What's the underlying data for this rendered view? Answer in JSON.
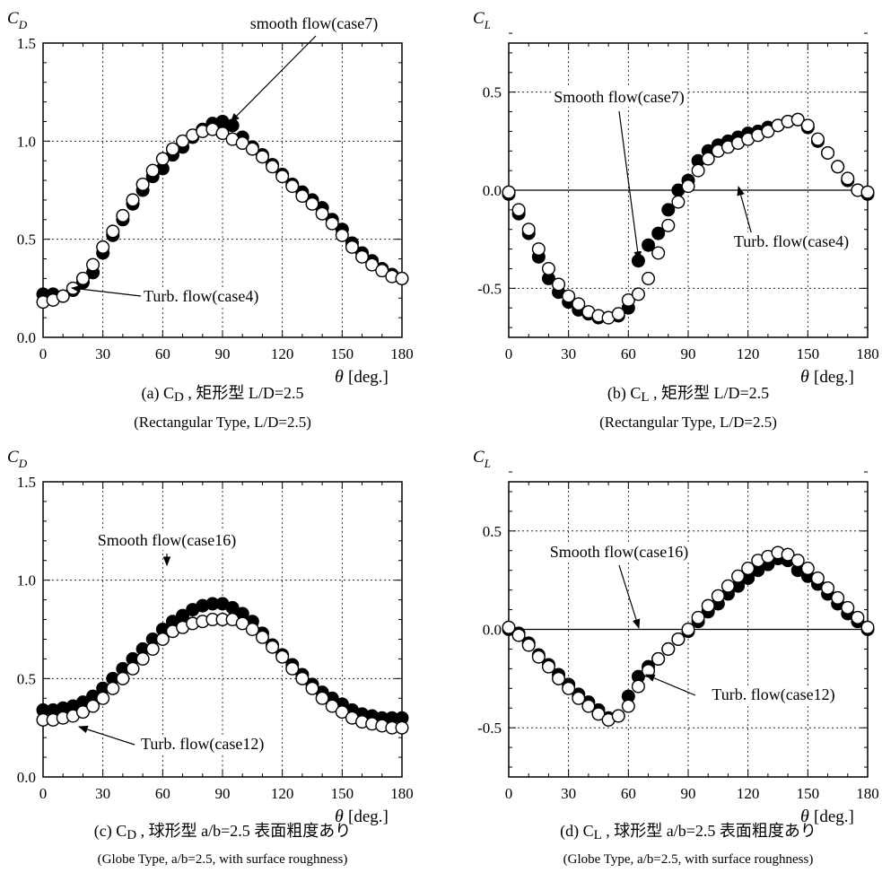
{
  "chart_data": [
    {
      "id": "a",
      "type": "scatter",
      "ylabel": "C",
      "ylabel_sub": "D",
      "xunit": "[deg.]",
      "xlabel_symbol": "θ",
      "xlim": [
        0,
        180
      ],
      "ylim": [
        0.0,
        1.5
      ],
      "xticks": [
        "0",
        "30",
        "60",
        "90",
        "120",
        "150",
        "180"
      ],
      "yticks": [
        "0.0",
        "0.5",
        "1.0",
        "1.5"
      ],
      "zero_line": false,
      "grid": true,
      "caption_line1_prefix": "(a) C",
      "caption_line1_sub": "D",
      "caption_line1_rest": " , 矩形型 L/D=2.5",
      "caption_line2": "(Rectangular Type, L/D=2.5)",
      "annotations": [
        {
          "text": "smooth flow(case7)"
        },
        {
          "text": "Turb. flow(case4)"
        }
      ],
      "series": [
        {
          "marker": "filled",
          "x": [
            0,
            5,
            10,
            15,
            20,
            25,
            30,
            35,
            40,
            45,
            50,
            55,
            60,
            65,
            70,
            75,
            80,
            85,
            90,
            95,
            100,
            105,
            110,
            115,
            120,
            125,
            130,
            135,
            140,
            145,
            150,
            155,
            160,
            165,
            170,
            175,
            180
          ],
          "y": [
            0.22,
            0.22,
            0.21,
            0.24,
            0.28,
            0.33,
            0.43,
            0.52,
            0.6,
            0.68,
            0.75,
            0.82,
            0.86,
            0.93,
            0.97,
            1.02,
            1.06,
            1.09,
            1.1,
            1.08,
            1.02,
            0.97,
            0.93,
            0.88,
            0.83,
            0.78,
            0.74,
            0.7,
            0.66,
            0.6,
            0.55,
            0.48,
            0.43,
            0.39,
            0.35,
            0.32,
            0.3
          ]
        },
        {
          "marker": "open",
          "x": [
            0,
            5,
            10,
            15,
            20,
            25,
            30,
            35,
            40,
            45,
            50,
            55,
            60,
            65,
            70,
            75,
            80,
            85,
            90,
            95,
            100,
            105,
            110,
            115,
            120,
            125,
            130,
            135,
            140,
            145,
            150,
            155,
            160,
            165,
            170,
            175,
            180
          ],
          "y": [
            0.18,
            0.19,
            0.21,
            0.25,
            0.3,
            0.37,
            0.46,
            0.54,
            0.62,
            0.7,
            0.78,
            0.85,
            0.91,
            0.96,
            1.0,
            1.03,
            1.05,
            1.06,
            1.04,
            1.01,
            0.99,
            0.96,
            0.92,
            0.87,
            0.82,
            0.77,
            0.72,
            0.68,
            0.63,
            0.58,
            0.52,
            0.46,
            0.41,
            0.37,
            0.34,
            0.31,
            0.3
          ]
        }
      ]
    },
    {
      "id": "b",
      "type": "scatter",
      "ylabel": "C",
      "ylabel_sub": "L",
      "xunit": "[deg.]",
      "xlabel_symbol": "θ",
      "xlim": [
        0,
        180
      ],
      "ylim": [
        -0.75,
        0.75
      ],
      "xticks": [
        "0",
        "30",
        "60",
        "90",
        "120",
        "150",
        "180"
      ],
      "yticks": [
        "-0.5",
        "0.0",
        "0.5"
      ],
      "ytick_values": [
        -0.5,
        0.0,
        0.5
      ],
      "zero_line": true,
      "grid": true,
      "caption_line1_prefix": "(b) C",
      "caption_line1_sub": "L",
      "caption_line1_rest": " , 矩形型 L/D=2.5",
      "caption_line2": "(Rectangular Type, L/D=2.5)",
      "annotations": [
        {
          "text": "Smooth flow(case7)"
        },
        {
          "text": "Turb. flow(case4)"
        }
      ],
      "series": [
        {
          "marker": "filled",
          "x": [
            0,
            5,
            10,
            15,
            20,
            25,
            30,
            35,
            40,
            45,
            50,
            55,
            60,
            65,
            70,
            75,
            80,
            85,
            90,
            95,
            100,
            105,
            110,
            115,
            120,
            125,
            130,
            135,
            140,
            145,
            150,
            155,
            160,
            165,
            170,
            175,
            180
          ],
          "y": [
            -0.02,
            -0.12,
            -0.22,
            -0.34,
            -0.45,
            -0.52,
            -0.57,
            -0.61,
            -0.63,
            -0.65,
            -0.65,
            -0.64,
            -0.6,
            -0.36,
            -0.28,
            -0.22,
            -0.1,
            0.0,
            0.05,
            0.15,
            0.2,
            0.23,
            0.25,
            0.27,
            0.29,
            0.3,
            0.32,
            0.33,
            0.35,
            0.36,
            0.32,
            0.25,
            0.19,
            0.12,
            0.05,
            0.0,
            -0.02
          ]
        },
        {
          "marker": "open",
          "x": [
            0,
            5,
            10,
            15,
            20,
            25,
            30,
            35,
            40,
            45,
            50,
            55,
            60,
            65,
            70,
            75,
            80,
            85,
            90,
            95,
            100,
            105,
            110,
            115,
            120,
            125,
            130,
            135,
            140,
            145,
            150,
            155,
            160,
            165,
            170,
            175,
            180
          ],
          "y": [
            -0.01,
            -0.1,
            -0.2,
            -0.3,
            -0.4,
            -0.48,
            -0.54,
            -0.58,
            -0.62,
            -0.64,
            -0.65,
            -0.63,
            -0.56,
            -0.53,
            -0.45,
            -0.32,
            -0.18,
            -0.06,
            0.02,
            0.1,
            0.16,
            0.2,
            0.22,
            0.24,
            0.26,
            0.28,
            0.3,
            0.33,
            0.35,
            0.36,
            0.33,
            0.26,
            0.19,
            0.12,
            0.06,
            0.0,
            -0.01
          ]
        }
      ]
    },
    {
      "id": "c",
      "type": "scatter",
      "ylabel": "C",
      "ylabel_sub": "D",
      "xunit": "[deg.]",
      "xlabel_symbol": "θ",
      "xlim": [
        0,
        180
      ],
      "ylim": [
        0.0,
        1.5
      ],
      "xticks": [
        "0",
        "30",
        "60",
        "90",
        "120",
        "150",
        "180"
      ],
      "yticks": [
        "0.0",
        "0.5",
        "1.0",
        "1.5"
      ],
      "zero_line": false,
      "grid": true,
      "caption_line1_prefix": "(c) C",
      "caption_line1_sub": "D",
      "caption_line1_rest": " , 球形型 a/b=2.5 表面粗度あり",
      "caption_line2": "(Globe Type, a/b=2.5, with surface roughness)",
      "annotations": [
        {
          "text": "Smooth flow(case16)"
        },
        {
          "text": "Turb. flow(case12)"
        }
      ],
      "series": [
        {
          "marker": "filled",
          "x": [
            0,
            5,
            10,
            15,
            20,
            25,
            30,
            35,
            40,
            45,
            50,
            55,
            60,
            65,
            70,
            75,
            80,
            85,
            90,
            95,
            100,
            105,
            110,
            115,
            120,
            125,
            130,
            135,
            140,
            145,
            150,
            155,
            160,
            165,
            170,
            175,
            180
          ],
          "y": [
            0.34,
            0.34,
            0.35,
            0.36,
            0.38,
            0.41,
            0.45,
            0.5,
            0.55,
            0.6,
            0.65,
            0.7,
            0.75,
            0.79,
            0.82,
            0.85,
            0.87,
            0.88,
            0.88,
            0.86,
            0.83,
            0.79,
            0.73,
            0.67,
            0.62,
            0.57,
            0.52,
            0.47,
            0.43,
            0.4,
            0.37,
            0.34,
            0.32,
            0.31,
            0.3,
            0.3,
            0.3
          ]
        },
        {
          "marker": "open",
          "x": [
            0,
            5,
            10,
            15,
            20,
            25,
            30,
            35,
            40,
            45,
            50,
            55,
            60,
            65,
            70,
            75,
            80,
            85,
            90,
            95,
            100,
            105,
            110,
            115,
            120,
            125,
            130,
            135,
            140,
            145,
            150,
            155,
            160,
            165,
            170,
            175,
            180
          ],
          "y": [
            0.29,
            0.29,
            0.3,
            0.31,
            0.33,
            0.36,
            0.4,
            0.45,
            0.5,
            0.55,
            0.6,
            0.65,
            0.7,
            0.74,
            0.76,
            0.78,
            0.79,
            0.8,
            0.8,
            0.8,
            0.78,
            0.75,
            0.71,
            0.66,
            0.61,
            0.55,
            0.5,
            0.45,
            0.4,
            0.36,
            0.33,
            0.3,
            0.28,
            0.27,
            0.26,
            0.25,
            0.25
          ]
        }
      ]
    },
    {
      "id": "d",
      "type": "scatter",
      "ylabel": "C",
      "ylabel_sub": "L",
      "xunit": "[deg.]",
      "xlabel_symbol": "θ",
      "xlim": [
        0,
        180
      ],
      "ylim": [
        -0.75,
        0.75
      ],
      "xticks": [
        "0",
        "30",
        "60",
        "90",
        "120",
        "150",
        "180"
      ],
      "yticks": [
        "-0.5",
        "0.0",
        "0.5"
      ],
      "ytick_values": [
        -0.5,
        0.0,
        0.5
      ],
      "zero_line": true,
      "grid": true,
      "caption_line1_prefix": "(d) C",
      "caption_line1_sub": "L",
      "caption_line1_rest": " , 球形型 a/b=2.5 表面粗度あり",
      "caption_line2": "(Globe Type, a/b=2.5, with surface roughness)",
      "annotations": [
        {
          "text": "Smooth flow(case16)"
        },
        {
          "text": "Turb. flow(case12)"
        }
      ],
      "series": [
        {
          "marker": "filled",
          "x": [
            0,
            5,
            10,
            15,
            20,
            25,
            30,
            35,
            40,
            45,
            50,
            55,
            60,
            65,
            70,
            75,
            80,
            85,
            90,
            95,
            100,
            105,
            110,
            115,
            120,
            125,
            130,
            135,
            140,
            145,
            150,
            155,
            160,
            165,
            170,
            175,
            180
          ],
          "y": [
            0.0,
            -0.02,
            -0.07,
            -0.13,
            -0.18,
            -0.23,
            -0.28,
            -0.33,
            -0.37,
            -0.41,
            -0.45,
            -0.44,
            -0.34,
            -0.24,
            -0.19,
            -0.15,
            -0.1,
            -0.05,
            -0.01,
            0.04,
            0.09,
            0.13,
            0.18,
            0.22,
            0.26,
            0.3,
            0.33,
            0.36,
            0.35,
            0.3,
            0.27,
            0.23,
            0.18,
            0.13,
            0.08,
            0.04,
            0.0
          ]
        },
        {
          "marker": "open",
          "x": [
            0,
            5,
            10,
            15,
            20,
            25,
            30,
            35,
            40,
            45,
            50,
            55,
            60,
            65,
            70,
            75,
            80,
            85,
            90,
            95,
            100,
            105,
            110,
            115,
            120,
            125,
            130,
            135,
            140,
            145,
            150,
            155,
            160,
            165,
            170,
            175,
            180
          ],
          "y": [
            0.01,
            -0.03,
            -0.08,
            -0.14,
            -0.19,
            -0.25,
            -0.3,
            -0.35,
            -0.39,
            -0.43,
            -0.46,
            -0.44,
            -0.39,
            -0.29,
            -0.21,
            -0.15,
            -0.1,
            -0.05,
            0.0,
            0.06,
            0.12,
            0.17,
            0.22,
            0.27,
            0.31,
            0.35,
            0.37,
            0.39,
            0.38,
            0.35,
            0.31,
            0.26,
            0.21,
            0.16,
            0.11,
            0.06,
            0.01
          ]
        }
      ]
    }
  ]
}
